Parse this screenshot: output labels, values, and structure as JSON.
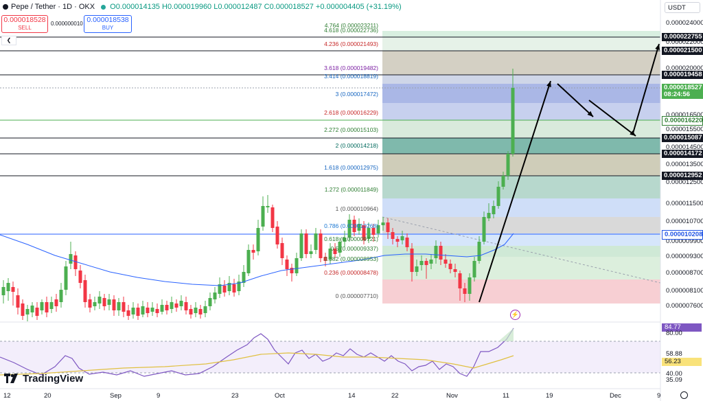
{
  "header": {
    "pair": "Pepe / Tether · 1D · OKX",
    "open": "O0.000014135",
    "high": "H0.000019960",
    "low": "L0.000012487",
    "close": "C0.000018527",
    "change": "+0.000004405 (+31.19%)"
  },
  "trade": {
    "sell_price": "0.000018528",
    "sell_label": "SELL",
    "spread": "0.000000010",
    "buy_price": "0.000018538",
    "buy_label": "BUY"
  },
  "collapse_glyph": "❮",
  "currency": "USDT",
  "price_axis": [
    "0.000024000",
    "0.000022000",
    "0.000020000",
    "0.000016500",
    "0.000015500",
    "0.000014500",
    "0.000013500",
    "0.000012500",
    "0.000011500",
    "0.000010700",
    "0.000009900",
    "0.000009300",
    "0.000008700",
    "0.000008100",
    "0.000007600"
  ],
  "tags": [
    {
      "text": "0.000022755",
      "style": "dark"
    },
    {
      "text": "0.000021500",
      "style": "dark"
    },
    {
      "text": "0.000019458",
      "style": "dark"
    },
    {
      "text": "0.000018527",
      "style": "green"
    },
    {
      "text": "08:24:56",
      "style": "green"
    },
    {
      "text": "0.000016220",
      "style": "greenlabel"
    },
    {
      "text": "0.000015087",
      "style": "dark"
    },
    {
      "text": "0.000014172",
      "style": "dark"
    },
    {
      "text": "0.000012952",
      "style": "dark"
    },
    {
      "text": "0.000010208",
      "style": "blue"
    }
  ],
  "fib_levels": [
    {
      "text": "4.764 (0.000023211)",
      "color": "#2e7d32"
    },
    {
      "text": "4.618 (0.000022736)",
      "color": "#2e7d32"
    },
    {
      "text": "4.236 (0.000021493)",
      "color": "#c62828"
    },
    {
      "text": "3.618 (0.000019482)",
      "color": "#7b1fa2"
    },
    {
      "text": "3.414 (0.000018819)",
      "color": "#1565c0"
    },
    {
      "text": "3 (0.000017472)",
      "color": "#1565c0"
    },
    {
      "text": "2.618 (0.000016229)",
      "color": "#c62828"
    },
    {
      "text": "2.272 (0.000015103)",
      "color": "#2e7d32"
    },
    {
      "text": "2 (0.000014218)",
      "color": "#00695c"
    },
    {
      "text": "1.618 (0.000012975)",
      "color": "#1565c0"
    },
    {
      "text": "1.272 (0.000011849)",
      "color": "#2e7d32"
    },
    {
      "text": "1 (0.000010964)",
      "color": "#555555"
    },
    {
      "text": "0.786 (0.000010268)",
      "color": "#1976d2"
    },
    {
      "text": "0.618 (0.000009721)",
      "color": "#2e7d32"
    },
    {
      "text": "0.5 (0.000009337)",
      "color": "#2e7d32"
    },
    {
      "text": "0.382 (0.000008953)",
      "color": "#2e7d32"
    },
    {
      "text": "0.236 (0.000008478)",
      "color": "#c62828"
    },
    {
      "text": "0 (0.000007710)",
      "color": "#555555"
    }
  ],
  "x_axis": [
    "12",
    "20",
    "Sep",
    "9",
    "23",
    "Oct",
    "14",
    "22",
    "Nov",
    "11",
    "19",
    "Dec",
    "9"
  ],
  "rsi": {
    "value": "84.77",
    "ma_value": "56.23",
    "levels": [
      "80.00",
      "58.88",
      "40.00",
      "35.09"
    ]
  },
  "brand": "TradingView",
  "colors": {
    "up": "#4caf50",
    "down": "#f23645",
    "ma": "#2962ff",
    "rsi": "#7e57c2",
    "rsi_ma": "#e0c040"
  }
}
